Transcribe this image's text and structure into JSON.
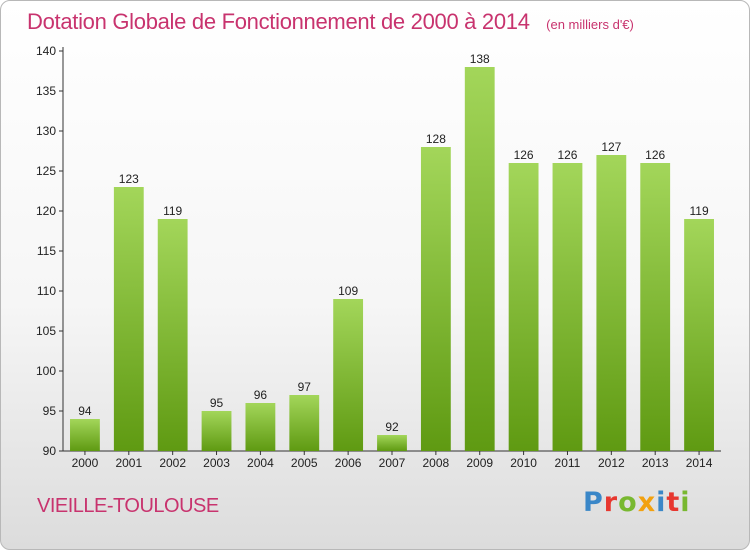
{
  "chart_data": {
    "type": "bar",
    "title": "Dotation Globale de Fonctionnement de 2000 à 2014",
    "subtitle": "(en milliers d'€)",
    "categories": [
      "2000",
      "2001",
      "2002",
      "2003",
      "2004",
      "2005",
      "2006",
      "2007",
      "2008",
      "2009",
      "2010",
      "2011",
      "2012",
      "2013",
      "2014"
    ],
    "values": [
      94,
      123,
      119,
      95,
      96,
      97,
      109,
      92,
      128,
      138,
      126,
      126,
      127,
      126,
      119
    ],
    "ylim": [
      90,
      140
    ],
    "yticks": [
      90,
      95,
      100,
      105,
      110,
      115,
      120,
      125,
      130,
      135,
      140
    ],
    "grid": false,
    "bar_color": "#7cbf2e"
  },
  "commune": "VIEILLE-TOULOUSE",
  "logo": {
    "p": "P",
    "r": "r",
    "o": "o",
    "x": "x",
    "i1": "i",
    "t": "t",
    "i2": "i"
  }
}
